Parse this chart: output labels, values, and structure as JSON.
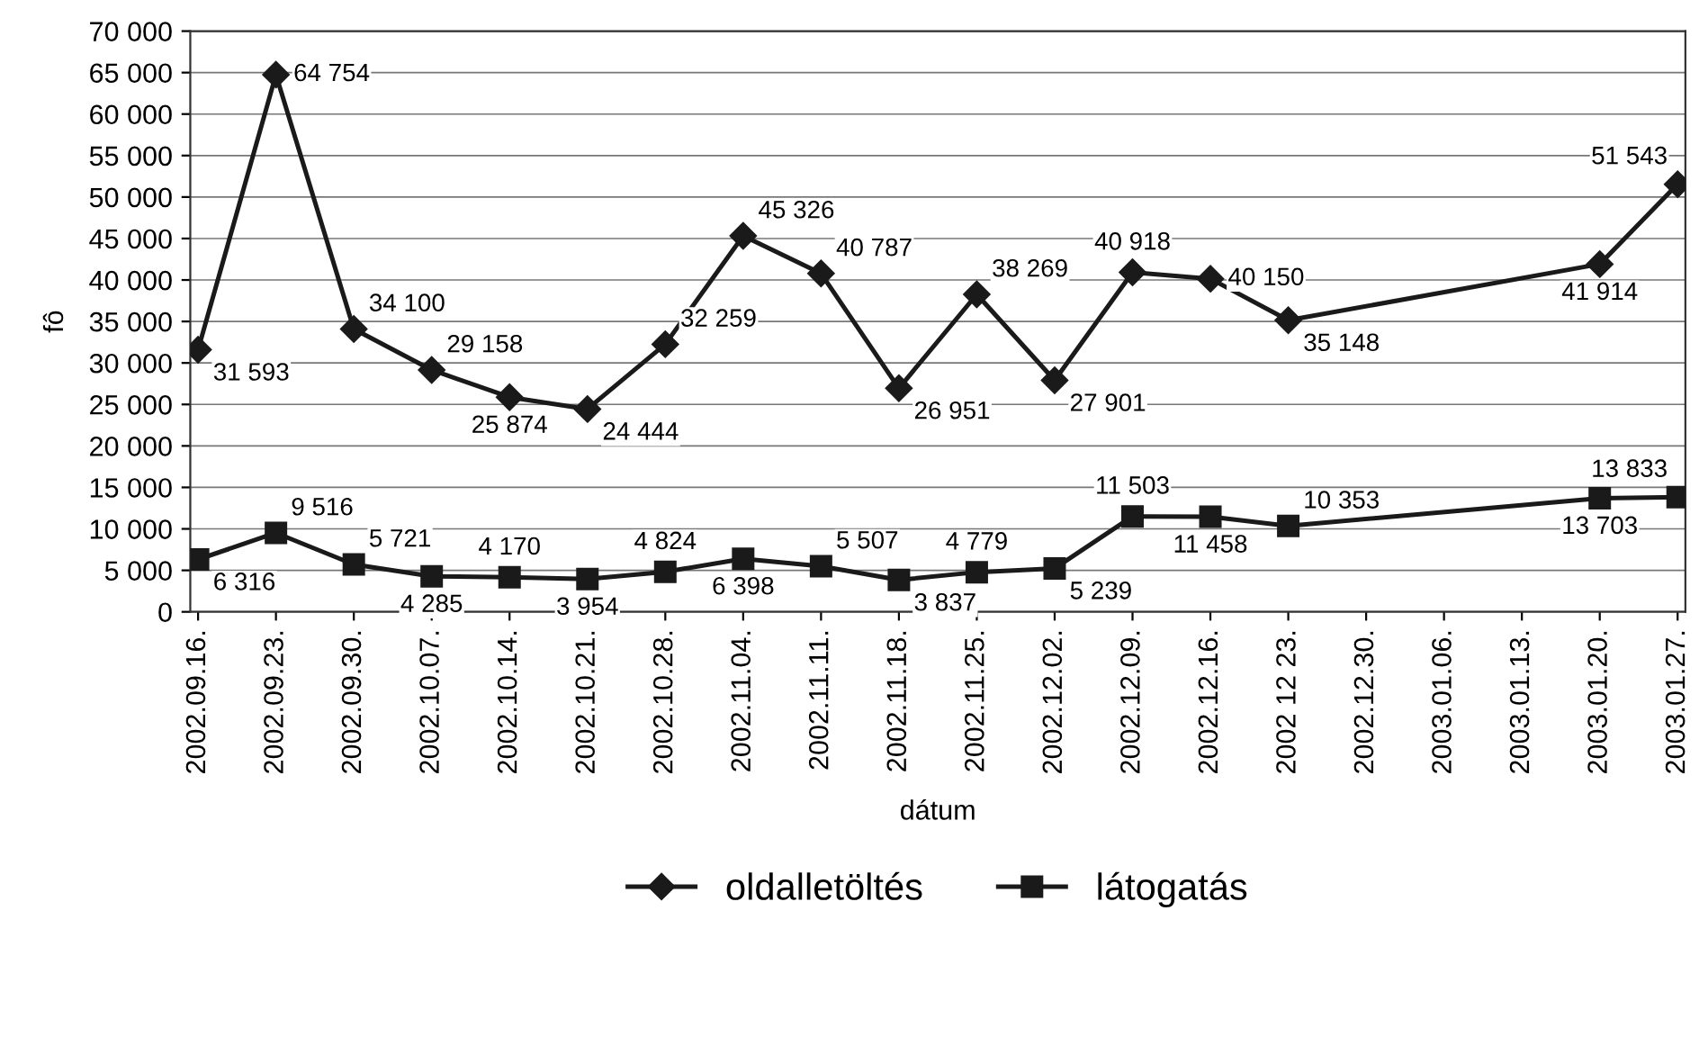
{
  "chart_data": {
    "type": "line",
    "xlabel": "dátum",
    "ylabel": "fô",
    "categories": [
      "2002.09.16.",
      "2002.09.23.",
      "2002.09.30.",
      "2002.10.07.",
      "2002.10.14.",
      "2002.10.21.",
      "2002.10.28.",
      "2002.11.04.",
      "2002.11.11.",
      "2002.11.18.",
      "2002.11.25.",
      "2002.12.02.",
      "2002.12.09.",
      "2002.12.16.",
      "2002 12 23.",
      "2002.12.30.",
      "2003.01.06.",
      "2003.01.13.",
      "2003.01.20.",
      "2003.01.27."
    ],
    "series": [
      {
        "name": "oldalletöltés",
        "color": "#1a1a1a",
        "marker": "diamond",
        "values": [
          31593,
          64754,
          34100,
          29158,
          25874,
          24444,
          32259,
          45326,
          40787,
          26951,
          38269,
          27901,
          40918,
          40150,
          35148,
          null,
          null,
          null,
          41914,
          51543
        ],
        "value_labels": [
          "31 593",
          "64 754",
          "34 100",
          "29 158",
          "25 874",
          "24 444",
          "32 259",
          "45 326",
          "40 787",
          "26 951",
          "38 269",
          "27 901",
          "40 918",
          "40 150",
          "35 148",
          null,
          null,
          null,
          "41 914",
          "51 543"
        ]
      },
      {
        "name": "látogatás",
        "color": "#1a1a1a",
        "marker": "square",
        "values": [
          6316,
          9516,
          5721,
          4285,
          4170,
          3954,
          4824,
          6398,
          5507,
          3837,
          4779,
          5239,
          11503,
          11458,
          10353,
          null,
          null,
          null,
          13703,
          13833
        ],
        "value_labels": [
          "6 316",
          "9 516",
          "5 721",
          "4 285",
          "4 170",
          "3 954",
          "4 824",
          "6 398",
          "5 507",
          "3 837",
          "4 779",
          "5 239",
          "11 503",
          "11 458",
          "10 353",
          null,
          null,
          null,
          "13 703",
          "13 833"
        ]
      }
    ],
    "ylim": [
      0,
      70000
    ],
    "yticks": [
      {
        "value": 0,
        "label": "0"
      },
      {
        "value": 5000,
        "label": "5 000"
      },
      {
        "value": 10000,
        "label": "10 000"
      },
      {
        "value": 15000,
        "label": "15 000"
      },
      {
        "value": 20000,
        "label": "20 000"
      },
      {
        "value": 25000,
        "label": "25 000"
      },
      {
        "value": 30000,
        "label": "30 000"
      },
      {
        "value": 35000,
        "label": "35 000"
      },
      {
        "value": 40000,
        "label": "40 000"
      },
      {
        "value": 45000,
        "label": "45 000"
      },
      {
        "value": 50000,
        "label": "50 000"
      },
      {
        "value": 55000,
        "label": "55 000"
      },
      {
        "value": 60000,
        "label": "60 000"
      },
      {
        "value": 65000,
        "label": "65 000"
      },
      {
        "value": 70000,
        "label": "70 000"
      }
    ],
    "grid": "y",
    "legend": "bottom",
    "line_style": "solid"
  }
}
